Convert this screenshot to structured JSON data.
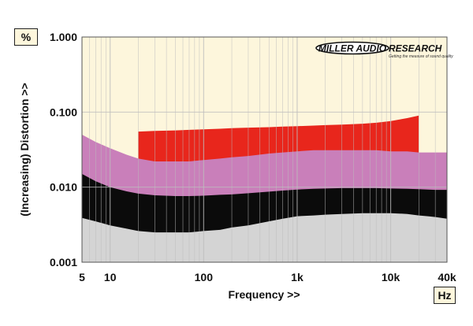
{
  "logo": {
    "left_text": "MILLER AUDIO",
    "right_text": "RESEARCH",
    "tagline": "Getting the measure of sound quality"
  },
  "units": {
    "y": "%",
    "x": "Hz"
  },
  "colors": {
    "plot_background": "#fdf6dc",
    "grid": "#bdbdbd",
    "red_band": "#e8261c",
    "pink_band": "#c97fba",
    "black_band": "#0b0b0b",
    "grey_band": "#d4d4d4"
  },
  "chart_data": {
    "type": "area",
    "title": "",
    "xlabel": "Frequency >>",
    "ylabel": "(Increasing) Distortion >>",
    "xscale": "log",
    "yscale": "log",
    "xlim": [
      5,
      40000
    ],
    "ylim": [
      0.001,
      1.0
    ],
    "grid": true,
    "x_ticks": [
      {
        "value": 5,
        "label": "5"
      },
      {
        "value": 10,
        "label": "10"
      },
      {
        "value": 100,
        "label": "100"
      },
      {
        "value": 1000,
        "label": "1k"
      },
      {
        "value": 10000,
        "label": "10k"
      },
      {
        "value": 40000,
        "label": "40k"
      }
    ],
    "y_ticks": [
      {
        "value": 1.0,
        "label": "1.000"
      },
      {
        "value": 0.1,
        "label": "0.100"
      },
      {
        "value": 0.01,
        "label": "0.010"
      },
      {
        "value": 0.001,
        "label": "0.001"
      }
    ],
    "x": [
      5,
      7,
      10,
      15,
      20,
      30,
      50,
      70,
      100,
      150,
      200,
      300,
      500,
      700,
      1000,
      1500,
      2000,
      3000,
      5000,
      7000,
      10000,
      15000,
      20000,
      25000,
      30000,
      40000
    ],
    "series": [
      {
        "color": "#e8261c",
        "upper": [
          null,
          null,
          null,
          null,
          0.055,
          0.056,
          0.057,
          0.058,
          0.059,
          0.06,
          0.061,
          0.062,
          0.063,
          0.064,
          0.065,
          0.066,
          0.067,
          0.068,
          0.07,
          0.072,
          0.076,
          0.083,
          0.09,
          null,
          null,
          null
        ]
      },
      {
        "color": "#c97fba",
        "upper": [
          0.05,
          0.04,
          0.033,
          0.027,
          0.024,
          0.022,
          0.022,
          0.022,
          0.023,
          0.024,
          0.025,
          0.026,
          0.028,
          0.029,
          0.03,
          0.031,
          0.031,
          0.031,
          0.031,
          0.031,
          0.03,
          0.03,
          0.029,
          0.029,
          0.029,
          0.029
        ]
      },
      {
        "color": "#0b0b0b",
        "upper": [
          0.015,
          0.012,
          0.01,
          0.0088,
          0.0082,
          0.0078,
          0.0076,
          0.0076,
          0.0077,
          0.0079,
          0.008,
          0.0083,
          0.0087,
          0.009,
          0.0093,
          0.0095,
          0.0096,
          0.0097,
          0.0097,
          0.0097,
          0.0096,
          0.0095,
          0.0094,
          0.0093,
          0.0092,
          0.0092
        ]
      },
      {
        "color": "#d4d4d4",
        "upper": [
          0.0039,
          0.0035,
          0.0031,
          0.0028,
          0.0026,
          0.0025,
          0.0025,
          0.0025,
          0.0026,
          0.0027,
          0.0029,
          0.0031,
          0.0035,
          0.0038,
          0.0041,
          0.0042,
          0.0043,
          0.0044,
          0.0045,
          0.0045,
          0.0045,
          0.0044,
          0.0042,
          0.0041,
          0.004,
          0.0038
        ]
      }
    ]
  }
}
